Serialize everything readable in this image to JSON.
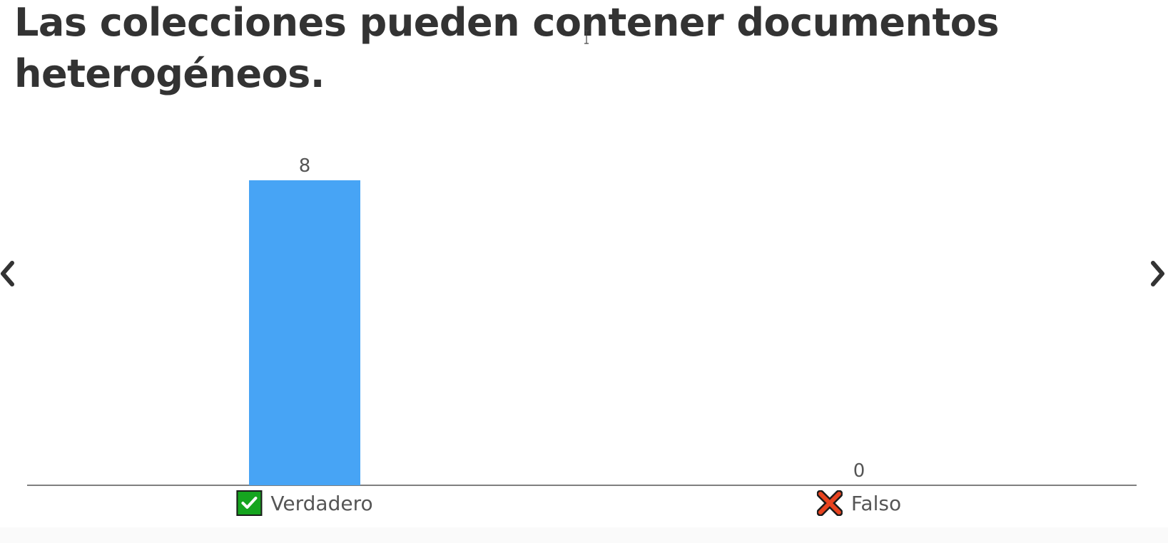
{
  "question": {
    "title": "Las colecciones pueden contener documentos heterogéneos."
  },
  "navigation": {
    "prev_icon": "chevron-left-icon",
    "next_icon": "chevron-right-icon"
  },
  "chart_data": {
    "type": "bar",
    "categories": [
      "Verdadero",
      "Falso"
    ],
    "values": [
      8,
      0
    ],
    "category_icons": [
      "check-box-icon",
      "cross-icon"
    ],
    "bar_color": "#47a4f5",
    "data_labels": [
      "8",
      "0"
    ],
    "ylim": [
      0,
      8
    ],
    "grid": false
  },
  "colors": {
    "text": "#333333",
    "bar": "#47a4f5",
    "check": "#16a51f",
    "cross": "#e8431f",
    "axis": "#555555"
  }
}
